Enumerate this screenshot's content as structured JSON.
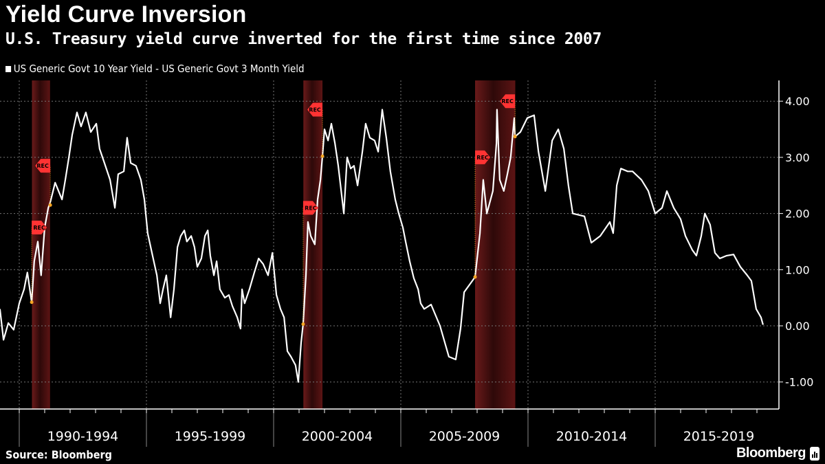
{
  "header": {
    "title": "Yield Curve Inversion",
    "subtitle": "U.S. Treasury yield curve inverted for the first time since 2007"
  },
  "footer": {
    "source": "Source: Bloomberg",
    "brand": "Bloomberg"
  },
  "colors": {
    "background": "#000000",
    "line": "#ffffff",
    "recession_band": "#5a1515",
    "recession_flag": "#ff3333",
    "marker": "#f5a623",
    "grid": "#777777"
  },
  "chart_data": {
    "type": "line",
    "title": "Yield Curve Inversion",
    "subtitle": "U.S. Treasury yield curve inverted for the first time since 2007",
    "legend_position": "top-left",
    "grid": true,
    "y_axis_side": "right",
    "ylim": [
      -1.5,
      4.3
    ],
    "yticks": [
      "4.00",
      "3.00",
      "2.00",
      "1.00",
      "0.00",
      "-1.00"
    ],
    "ytick_values": [
      4,
      3,
      2,
      1,
      0,
      -1
    ],
    "xlim": [
      1989.24,
      2019.5
    ],
    "x_period_labels": [
      "1990-1994",
      "1995-1999",
      "2000-2004",
      "2005-2009",
      "2010-2014",
      "2015-2019"
    ],
    "x_period_starts": [
      1990,
      1995,
      2000,
      2005,
      2010,
      2015
    ],
    "recession_label": "REC",
    "recessions": [
      [
        1990.5,
        1991.21
      ],
      [
        2001.17,
        2001.92
      ],
      [
        2007.92,
        2009.5
      ]
    ],
    "recession_markers": [
      [
        1990.49,
        0.42
      ],
      [
        1991.22,
        2.15
      ],
      [
        2001.16,
        0.03
      ],
      [
        2001.92,
        3.02
      ],
      [
        2007.92,
        0.87
      ],
      [
        2009.49,
        3.37
      ]
    ],
    "series": [
      {
        "name": "US Generic Govt 10 Year Yield - US Generic Govt 3 Month Yield",
        "points": [
          [
            1989.24,
            0.3
          ],
          [
            1989.38,
            -0.25
          ],
          [
            1989.57,
            0.05
          ],
          [
            1989.78,
            -0.07
          ],
          [
            1990.0,
            0.4
          ],
          [
            1990.19,
            0.65
          ],
          [
            1990.32,
            0.95
          ],
          [
            1990.49,
            0.42
          ],
          [
            1990.59,
            1.15
          ],
          [
            1990.73,
            1.5
          ],
          [
            1990.86,
            0.9
          ],
          [
            1991.0,
            1.75
          ],
          [
            1991.14,
            2.1
          ],
          [
            1991.22,
            2.2
          ],
          [
            1991.41,
            2.55
          ],
          [
            1991.68,
            2.25
          ],
          [
            1991.81,
            2.6
          ],
          [
            1991.95,
            3.0
          ],
          [
            1992.08,
            3.4
          ],
          [
            1992.27,
            3.8
          ],
          [
            1992.43,
            3.55
          ],
          [
            1992.62,
            3.8
          ],
          [
            1992.81,
            3.45
          ],
          [
            1993.03,
            3.6
          ],
          [
            1993.16,
            3.15
          ],
          [
            1993.35,
            2.9
          ],
          [
            1993.57,
            2.6
          ],
          [
            1993.76,
            2.1
          ],
          [
            1993.89,
            2.7
          ],
          [
            1994.11,
            2.75
          ],
          [
            1994.24,
            3.35
          ],
          [
            1994.38,
            2.9
          ],
          [
            1994.59,
            2.85
          ],
          [
            1994.78,
            2.6
          ],
          [
            1994.92,
            2.25
          ],
          [
            1995.05,
            1.65
          ],
          [
            1995.24,
            1.25
          ],
          [
            1995.41,
            0.9
          ],
          [
            1995.54,
            0.4
          ],
          [
            1995.65,
            0.65
          ],
          [
            1995.78,
            0.9
          ],
          [
            1995.95,
            0.15
          ],
          [
            1996.08,
            0.65
          ],
          [
            1996.22,
            1.4
          ],
          [
            1996.35,
            1.6
          ],
          [
            1996.49,
            1.7
          ],
          [
            1996.59,
            1.5
          ],
          [
            1996.76,
            1.6
          ],
          [
            1996.89,
            1.4
          ],
          [
            1997.0,
            1.05
          ],
          [
            1997.16,
            1.2
          ],
          [
            1997.3,
            1.6
          ],
          [
            1997.41,
            1.7
          ],
          [
            1997.51,
            1.25
          ],
          [
            1997.65,
            0.9
          ],
          [
            1997.76,
            1.15
          ],
          [
            1997.89,
            0.65
          ],
          [
            1998.08,
            0.5
          ],
          [
            1998.24,
            0.55
          ],
          [
            1998.38,
            0.35
          ],
          [
            1998.57,
            0.15
          ],
          [
            1998.7,
            -0.05
          ],
          [
            1998.76,
            0.65
          ],
          [
            1998.86,
            0.4
          ],
          [
            1999.05,
            0.65
          ],
          [
            1999.24,
            0.95
          ],
          [
            1999.41,
            1.2
          ],
          [
            1999.59,
            1.1
          ],
          [
            1999.78,
            0.9
          ],
          [
            1999.95,
            1.3
          ],
          [
            2000.11,
            0.55
          ],
          [
            2000.27,
            0.3
          ],
          [
            2000.41,
            0.15
          ],
          [
            2000.54,
            -0.45
          ],
          [
            2000.68,
            -0.55
          ],
          [
            2000.86,
            -0.7
          ],
          [
            2000.97,
            -1.0
          ],
          [
            2001.08,
            -0.3
          ],
          [
            2001.16,
            0.03
          ],
          [
            2001.27,
            0.9
          ],
          [
            2001.35,
            1.85
          ],
          [
            2001.46,
            1.6
          ],
          [
            2001.62,
            1.45
          ],
          [
            2001.73,
            2.25
          ],
          [
            2001.84,
            2.6
          ],
          [
            2001.92,
            3.02
          ],
          [
            2002.0,
            3.5
          ],
          [
            2002.14,
            3.3
          ],
          [
            2002.27,
            3.6
          ],
          [
            2002.41,
            3.25
          ],
          [
            2002.54,
            2.85
          ],
          [
            2002.76,
            2.0
          ],
          [
            2002.89,
            3.0
          ],
          [
            2003.03,
            2.8
          ],
          [
            2003.16,
            2.85
          ],
          [
            2003.3,
            2.5
          ],
          [
            2003.49,
            3.1
          ],
          [
            2003.62,
            3.6
          ],
          [
            2003.78,
            3.35
          ],
          [
            2003.97,
            3.3
          ],
          [
            2004.11,
            3.1
          ],
          [
            2004.27,
            3.85
          ],
          [
            2004.43,
            3.35
          ],
          [
            2004.59,
            2.75
          ],
          [
            2004.78,
            2.25
          ],
          [
            2004.92,
            2.0
          ],
          [
            2005.08,
            1.75
          ],
          [
            2005.19,
            1.5
          ],
          [
            2005.35,
            1.15
          ],
          [
            2005.51,
            0.85
          ],
          [
            2005.68,
            0.65
          ],
          [
            2005.78,
            0.4
          ],
          [
            2005.92,
            0.3
          ],
          [
            2006.19,
            0.38
          ],
          [
            2006.54,
            0.0
          ],
          [
            2006.89,
            -0.55
          ],
          [
            2007.16,
            -0.6
          ],
          [
            2007.35,
            -0.05
          ],
          [
            2007.49,
            0.6
          ],
          [
            2007.81,
            0.8
          ],
          [
            2007.92,
            0.87
          ],
          [
            2008.11,
            1.65
          ],
          [
            2008.24,
            2.6
          ],
          [
            2008.38,
            2.0
          ],
          [
            2008.62,
            2.4
          ],
          [
            2008.76,
            3.25
          ],
          [
            2008.78,
            3.85
          ],
          [
            2008.89,
            2.6
          ],
          [
            2009.05,
            2.4
          ],
          [
            2009.19,
            2.7
          ],
          [
            2009.32,
            3.0
          ],
          [
            2009.46,
            3.7
          ],
          [
            2009.49,
            3.37
          ],
          [
            2009.7,
            3.45
          ],
          [
            2009.97,
            3.7
          ],
          [
            2010.24,
            3.75
          ],
          [
            2010.41,
            3.1
          ],
          [
            2010.68,
            2.4
          ],
          [
            2010.95,
            3.3
          ],
          [
            2011.19,
            3.5
          ],
          [
            2011.41,
            3.15
          ],
          [
            2011.59,
            2.5
          ],
          [
            2011.76,
            2.0
          ],
          [
            2012.22,
            1.95
          ],
          [
            2012.49,
            1.48
          ],
          [
            2012.84,
            1.6
          ],
          [
            2013.22,
            1.85
          ],
          [
            2013.35,
            1.65
          ],
          [
            2013.49,
            2.5
          ],
          [
            2013.65,
            2.8
          ],
          [
            2013.92,
            2.75
          ],
          [
            2014.11,
            2.75
          ],
          [
            2014.46,
            2.6
          ],
          [
            2014.73,
            2.4
          ],
          [
            2015.0,
            2.0
          ],
          [
            2015.27,
            2.1
          ],
          [
            2015.46,
            2.4
          ],
          [
            2015.73,
            2.1
          ],
          [
            2016.0,
            1.9
          ],
          [
            2016.19,
            1.6
          ],
          [
            2016.46,
            1.35
          ],
          [
            2016.62,
            1.25
          ],
          [
            2016.81,
            1.6
          ],
          [
            2016.95,
            2.0
          ],
          [
            2017.16,
            1.8
          ],
          [
            2017.35,
            1.3
          ],
          [
            2017.54,
            1.2
          ],
          [
            2017.81,
            1.25
          ],
          [
            2018.08,
            1.27
          ],
          [
            2018.35,
            1.05
          ],
          [
            2018.62,
            0.9
          ],
          [
            2018.78,
            0.8
          ],
          [
            2018.97,
            0.3
          ],
          [
            2019.16,
            0.15
          ],
          [
            2019.24,
            0.02
          ]
        ]
      }
    ]
  }
}
